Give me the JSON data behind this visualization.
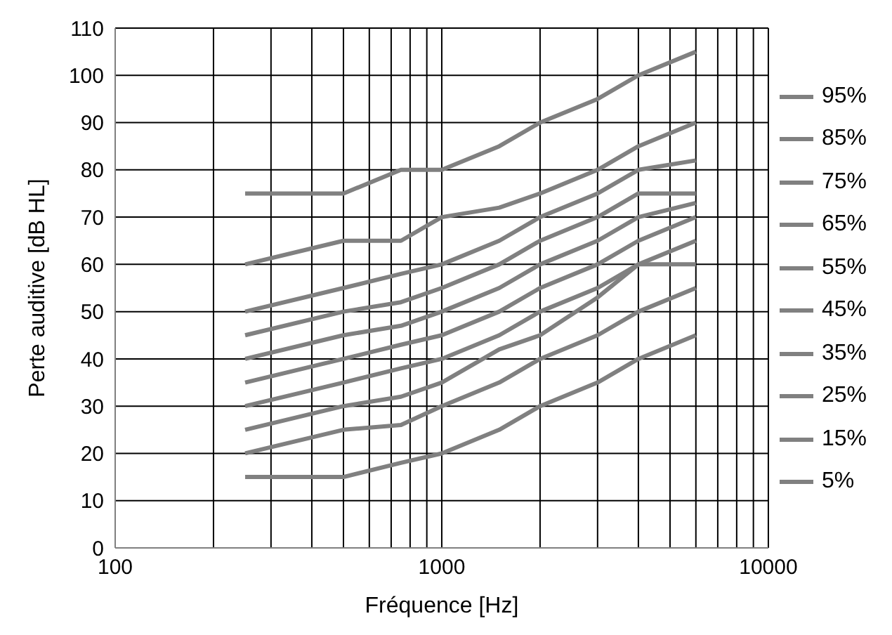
{
  "chart_data": {
    "type": "line",
    "xlabel": "Fréquence [Hz]",
    "ylabel": "Perte auditive [dB HL]",
    "log": "x",
    "grid": true,
    "legend": "right",
    "marker": "none",
    "line_style": "solid",
    "x": [
      250,
      500,
      750,
      1000,
      1500,
      2000,
      3000,
      4000,
      6000
    ],
    "xlim": [
      100,
      10000
    ],
    "xticks": [
      100,
      {
        "value": 200,
        "label": null
      },
      {
        "value": 300,
        "label": null
      },
      {
        "value": 400,
        "label": null
      },
      {
        "value": 500,
        "label": null
      },
      {
        "value": 600,
        "label": null
      },
      {
        "value": 700,
        "label": null
      },
      {
        "value": 800,
        "label": null
      },
      {
        "value": 900,
        "label": null
      },
      1000,
      {
        "value": 2000,
        "label": null
      },
      {
        "value": 3000,
        "label": null
      },
      {
        "value": 4000,
        "label": null
      },
      {
        "value": 5000,
        "label": null
      },
      {
        "value": 6000,
        "label": null
      },
      {
        "value": 7000,
        "label": null
      },
      {
        "value": 8000,
        "label": null
      },
      {
        "value": 9000,
        "label": null
      },
      10000
    ],
    "ylim": [
      0,
      110
    ],
    "yticks": [
      0,
      10,
      20,
      30,
      40,
      50,
      60,
      70,
      80,
      90,
      100,
      110
    ],
    "series": [
      {
        "name": "95%",
        "color": "#808080",
        "values": [
          75,
          75,
          80,
          80,
          85,
          90,
          95,
          100,
          105
        ]
      },
      {
        "name": "85%",
        "color": "#808080",
        "values": [
          60,
          65,
          65,
          70,
          72,
          75,
          80,
          85,
          90
        ]
      },
      {
        "name": "75%",
        "color": "#808080",
        "values": [
          50,
          55,
          58,
          60,
          65,
          70,
          75,
          80,
          82
        ]
      },
      {
        "name": "65%",
        "color": "#808080",
        "values": [
          45,
          50,
          52,
          55,
          60,
          65,
          70,
          75,
          75
        ]
      },
      {
        "name": "55%",
        "color": "#808080",
        "values": [
          40,
          45,
          47,
          50,
          55,
          60,
          65,
          70,
          73
        ]
      },
      {
        "name": "45%",
        "color": "#808080",
        "values": [
          35,
          40,
          43,
          45,
          50,
          55,
          60,
          65,
          70
        ]
      },
      {
        "name": "35%",
        "color": "#808080",
        "values": [
          30,
          35,
          38,
          40,
          45,
          50,
          55,
          60,
          65
        ]
      },
      {
        "name": "25%",
        "color": "#808080",
        "values": [
          25,
          30,
          32,
          35,
          42,
          45,
          53,
          60,
          60
        ]
      },
      {
        "name": "15%",
        "color": "#808080",
        "values": [
          20,
          25,
          26,
          30,
          35,
          40,
          45,
          50,
          55
        ]
      },
      {
        "name": "5%",
        "color": "#808080",
        "values": [
          15,
          15,
          18,
          20,
          25,
          30,
          35,
          40,
          45
        ]
      }
    ]
  }
}
